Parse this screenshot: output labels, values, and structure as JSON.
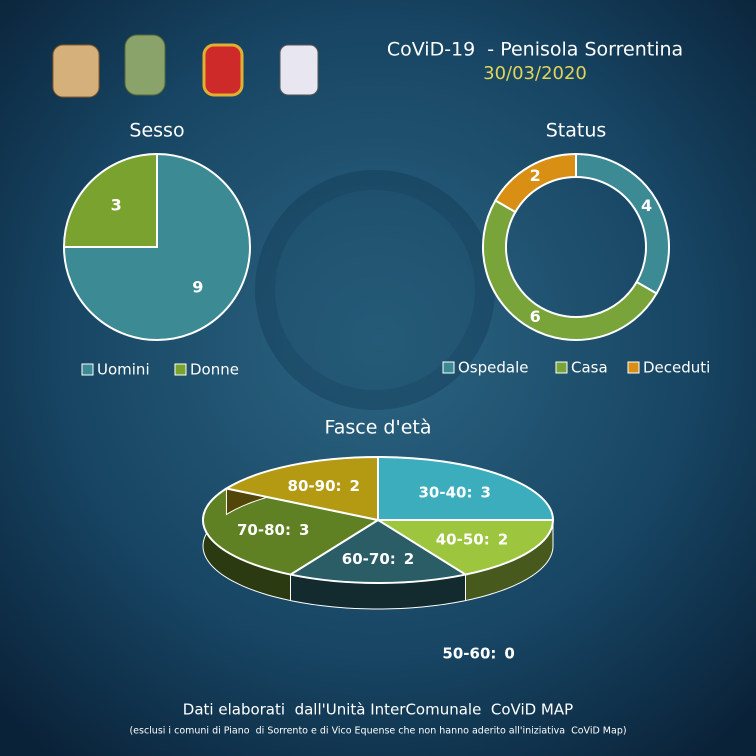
{
  "header": {
    "title": "CoViD-19  - Penisola Sorrentina",
    "date": "30/03/2020"
  },
  "footer": {
    "source": "Dati elaborati  dall'Unità InterComunale  CoViD MAP",
    "note": "(esclusi i comuni di Piano  di Sorrento e di Vico Equense che non hanno aderito all'iniziativa  CoViD Map)"
  },
  "chart_data": [
    {
      "type": "pie",
      "title": "Sesso",
      "categories": [
        "Uomini",
        "Donne"
      ],
      "values": [
        9,
        3
      ],
      "colors": [
        "#3c8a94",
        "#79a22e"
      ],
      "legend": true
    },
    {
      "type": "donut",
      "title": "Status",
      "categories": [
        "Ospedale",
        "Casa",
        "Deceduti"
      ],
      "values": [
        4,
        6,
        2
      ],
      "colors": [
        "#3c8a94",
        "#78a43a",
        "#d98f14"
      ],
      "legend": true
    },
    {
      "type": "pie3d",
      "title": "Fasce d'età",
      "categories": [
        "30-40:",
        "40-50:",
        "50-60:",
        "60-70:",
        "70-80:",
        "80-90:"
      ],
      "values": [
        3,
        2,
        0,
        2,
        3,
        2
      ],
      "colors": [
        "#3badbc",
        "#9dc53e",
        "#3a7f8a",
        "#2a5d66",
        "#5f8023",
        "#b39a12"
      ],
      "legend": false
    }
  ]
}
